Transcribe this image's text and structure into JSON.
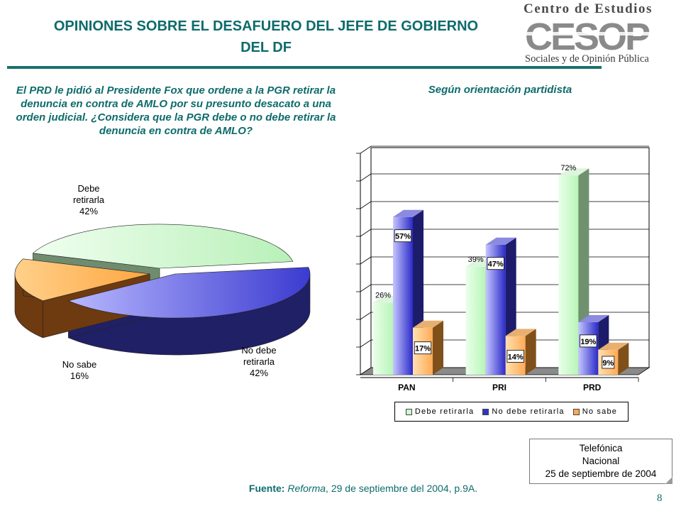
{
  "title": "OPINIONES SOBRE EL DESAFUERO DEL JEFE DE GOBIERNO DEL DF",
  "logo": {
    "line1": "Centro de Estudios",
    "wordmark": "CESOP",
    "line2": "Sociales y de Opinión Pública"
  },
  "question": {
    "prefix": "El PRD le pidió al Presidente Fox que ordene a la PGR retirar la denuncia en contra de AMLO por su presunto desacato a una orden judicial. ¿Considera que la PGR debe o no debe retirar la denuncia en contra de AMLO?"
  },
  "bar_title": "Según orientación partidista",
  "note": {
    "line1": "Telefónica",
    "line2": "Nacional",
    "line3": "25 de septiembre de 2004"
  },
  "source": {
    "label": "Fuente:",
    "publication": "Reforma",
    "rest": ", 29 de septiembre del 2004, p.9A."
  },
  "page_number": "8",
  "colors": {
    "teal": "#0e6b6b",
    "debe": "#ccffcc",
    "no_debe": "#3333cc",
    "no_sabe": "#ffaa55"
  },
  "chart_data": [
    {
      "type": "pie",
      "slices": [
        {
          "label_line1": "Debe",
          "label_line2": "retirarla",
          "value": 42,
          "display": "42%"
        },
        {
          "label_line1": "No debe",
          "label_line2": "retirarla",
          "value": 42,
          "display": "42%"
        },
        {
          "label_line1": "No sabe",
          "label_line2": "",
          "value": 16,
          "display": "16%"
        }
      ]
    },
    {
      "type": "bar",
      "title": "Según orientación partidista",
      "categories": [
        "PAN",
        "PRI",
        "PRD"
      ],
      "series": [
        {
          "name": "Debe retirarla",
          "values": [
            26,
            39,
            72
          ],
          "labels": [
            "26%",
            "39%",
            "72%"
          ]
        },
        {
          "name": "No debe retirarla",
          "values": [
            57,
            47,
            19
          ],
          "labels": [
            "57%",
            "47%",
            "19%"
          ]
        },
        {
          "name": "No sabe",
          "values": [
            17,
            14,
            9
          ],
          "labels": [
            "17%",
            "14%",
            "9%"
          ]
        }
      ],
      "ylim": [
        0,
        80
      ],
      "grid": true,
      "legend": "bottom"
    }
  ]
}
